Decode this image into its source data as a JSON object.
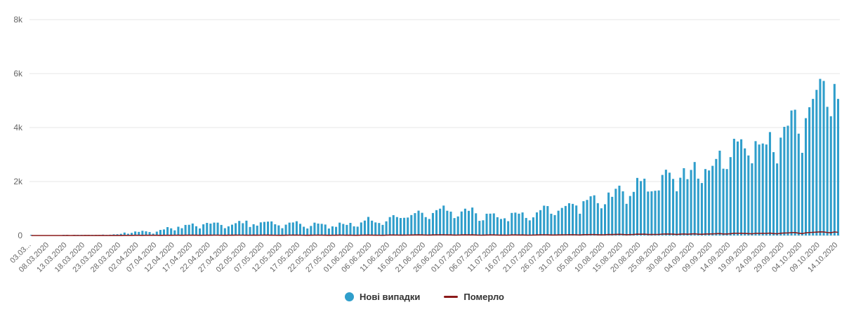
{
  "chart_data": {
    "type": "bar",
    "title": "",
    "xlabel": "",
    "ylabel": "",
    "ylim": [
      0,
      8000
    ],
    "grid": true,
    "legend_position": "bottom",
    "x_start_date": "03.03.2020",
    "x_end_date": "14.10.2020",
    "x_step_days": 1,
    "y_ticks": [
      {
        "value": 0,
        "label": "0"
      },
      {
        "value": 2000,
        "label": "2k"
      },
      {
        "value": 4000,
        "label": "4k"
      },
      {
        "value": 6000,
        "label": "6k"
      },
      {
        "value": 8000,
        "label": "8k"
      }
    ],
    "x_tick_labels": [
      "03.03...",
      "08.03.2020",
      "13.03.2020",
      "18.03.2020",
      "23.03.2020",
      "28.03.2020",
      "02.04.2020",
      "07.04.2020",
      "12.04.2020",
      "17.04.2020",
      "22.04.2020",
      "27.04.2020",
      "02.05.2020",
      "07.05.2020",
      "12.05.2020",
      "17.05.2020",
      "22.05.2020",
      "27.05.2020",
      "01.06.2020",
      "06.06.2020",
      "11.06.2020",
      "16.06.2020",
      "21.06.2020",
      "26.06.2020",
      "01.07.2020",
      "06.07.2020",
      "11.07.2020",
      "16.07.2020",
      "21.07.2020",
      "26.07.2020",
      "31.07.2020",
      "05.08.2020",
      "10.08.2020",
      "15.08.2020",
      "20.08.2020",
      "25.08.2020",
      "30.08.2020",
      "04.09.2020",
      "09.09.2020",
      "14.09.2020",
      "19.09.2020",
      "24.09.2020",
      "29.09.2020",
      "04.10.2020",
      "09.10.2020",
      "14.10.2020"
    ],
    "x_tick_every_n_days": 5,
    "series": [
      {
        "name": "Нові випадки",
        "type": "bar",
        "color": "#2f9ecb",
        "values": [
          1,
          0,
          0,
          0,
          0,
          0,
          0,
          0,
          0,
          1,
          2,
          0,
          1,
          2,
          7,
          7,
          5,
          12,
          15,
          26,
          32,
          21,
          30,
          43,
          46,
          62,
          109,
          65,
          97,
          149,
          134,
          175,
          154,
          128,
          68,
          143,
          206,
          224,
          311,
          266,
          191,
          325,
          270,
          392,
          397,
          444,
          343,
          261,
          415,
          467,
          441,
          478,
          477,
          392,
          271,
          339,
          401,
          456,
          540,
          455,
          550,
          316,
          418,
          366,
          487,
          504,
          515,
          522,
          416,
          375,
          270,
          402,
          477,
          483,
          528,
          433,
          325,
          260,
          354,
          476,
          442,
          432,
          406,
          259,
          339,
          321,
          477,
          429,
          393,
          468,
          340,
          328,
          483,
          553,
          689,
          550,
          485,
          463,
          394,
          525,
          683,
          753,
          683,
          648,
          656,
          666,
          758,
          829,
          921,
          841,
          681,
          612,
          833,
          940,
          994,
          1109,
          917,
          885,
          646,
          706,
          889,
          994,
          914,
          1036,
          823,
          543,
          564,
          807,
          810,
          819,
          678,
          612,
          638,
          531,
          836,
          848,
          809,
          854,
          651,
          561,
          673,
          856,
          940,
          1106,
          1090,
          807,
          757,
          919,
          1022,
          1094,
          1197,
          1172,
          1112,
          807,
          1271,
          1318,
          1453,
          1489,
          1199,
          1008,
          1158,
          1592,
          1433,
          1732,
          1847,
          1637,
          1174,
          1464,
          1616,
          2134,
          2017,
          2106,
          1629,
          1637,
          1658,
          1670,
          2245,
          2438,
          2328,
          2096,
          1639,
          2141,
          2495,
          2088,
          2430,
          2723,
          2107,
          1945,
          2462,
          2411,
          2582,
          2836,
          3144,
          2476,
          2462,
          2905,
          3584,
          3484,
          3565,
          3228,
          2966,
          2675,
          3497,
          3372,
          3409,
          3372,
          3833,
          3089,
          2671,
          3627,
          4027,
          4069,
          4633,
          4661,
          3774,
          3064,
          4348,
          4753,
          5062,
          5397,
          5804,
          5728,
          4768,
          4420,
          5616,
          5062
        ]
      },
      {
        "name": "Померло",
        "type": "line",
        "color": "#8b1a1a",
        "values": [
          0,
          0,
          0,
          0,
          0,
          0,
          0,
          0,
          0,
          0,
          1,
          0,
          1,
          0,
          0,
          1,
          2,
          0,
          1,
          1,
          1,
          0,
          3,
          1,
          2,
          2,
          5,
          3,
          5,
          8,
          7,
          5,
          10,
          8,
          10,
          7,
          5,
          9,
          8,
          8,
          10,
          11,
          9,
          12,
          12,
          13,
          11,
          9,
          10,
          13,
          12,
          13,
          13,
          10,
          9,
          11,
          12,
          14,
          13,
          13,
          12,
          10,
          14,
          12,
          13,
          14,
          15,
          12,
          10,
          9,
          8,
          12,
          13,
          14,
          15,
          13,
          10,
          9,
          12,
          13,
          14,
          13,
          12,
          9,
          10,
          11,
          14,
          13,
          12,
          13,
          9,
          8,
          13,
          14,
          17,
          13,
          11,
          10,
          9,
          13,
          17,
          18,
          16,
          14,
          15,
          16,
          18,
          20,
          23,
          20,
          16,
          14,
          20,
          23,
          24,
          26,
          21,
          20,
          15,
          16,
          21,
          24,
          22,
          25,
          19,
          13,
          14,
          19,
          20,
          20,
          16,
          14,
          15,
          13,
          20,
          21,
          19,
          20,
          15,
          13,
          16,
          21,
          23,
          26,
          25,
          19,
          18,
          22,
          24,
          26,
          28,
          27,
          26,
          19,
          30,
          31,
          34,
          35,
          28,
          24,
          27,
          37,
          33,
          40,
          43,
          38,
          27,
          34,
          38,
          50,
          47,
          49,
          38,
          38,
          39,
          39,
          52,
          56,
          54,
          49,
          38,
          50,
          58,
          48,
          56,
          63,
          49,
          45,
          57,
          56,
          60,
          66,
          73,
          57,
          57,
          67,
          83,
          81,
          83,
          75,
          69,
          62,
          81,
          78,
          79,
          78,
          89,
          72,
          62,
          84,
          93,
          94,
          107,
          108,
          87,
          71,
          100,
          110,
          117,
          125,
          134,
          132,
          110,
          102,
          133,
          117
        ]
      }
    ]
  },
  "legend": {
    "items": [
      {
        "label": "Нові випадки",
        "color": "#2f9ecb",
        "marker": "circle"
      },
      {
        "label": "Померло",
        "color": "#8b1a1a",
        "marker": "line"
      }
    ]
  },
  "style": {
    "gridline_color": "#e7e7e7",
    "axis_label_color": "#666666",
    "background": "#ffffff"
  }
}
